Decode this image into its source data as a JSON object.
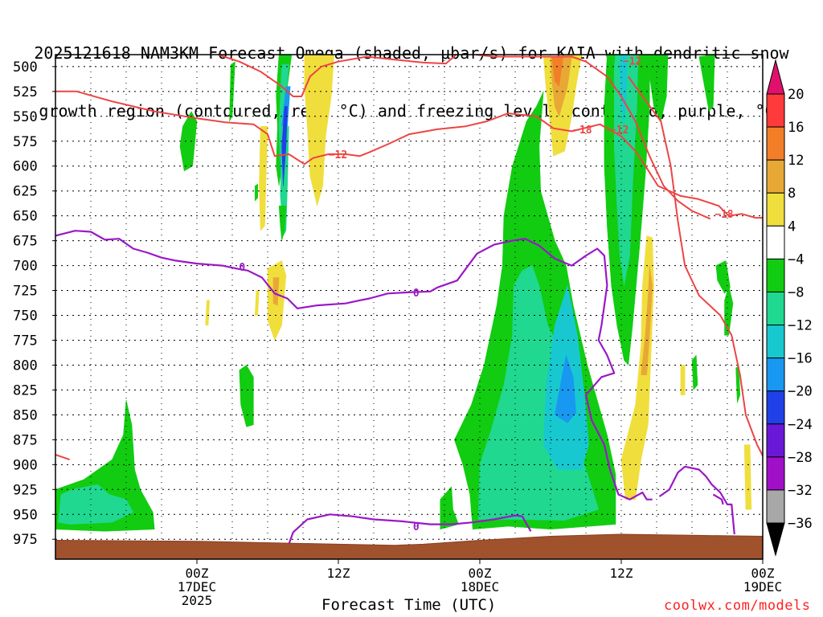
{
  "title": {
    "line1": "2025121618 NAM3KM Forecast Omega (shaded, μbar/s) for KAIA with dendritic snow",
    "line2": "growth region (contoured, red, °C) and freezing level (contoured, purple, °C)"
  },
  "chart_data": {
    "type": "heatmap",
    "xlabel": "Forecast Time (UTC)",
    "credit": "coolwx.com/models",
    "y_axis": {
      "label": "",
      "ticks": [
        "500",
        "525",
        "550",
        "575",
        "600",
        "625",
        "650",
        "675",
        "700",
        "725",
        "750",
        "775",
        "800",
        "825",
        "850",
        "875",
        "900",
        "925",
        "950",
        "975"
      ],
      "values": [
        500,
        525,
        550,
        575,
        600,
        625,
        650,
        675,
        700,
        725,
        750,
        775,
        800,
        825,
        850,
        875,
        900,
        925,
        950,
        975
      ],
      "ylim": [
        488,
        995
      ],
      "inverted": true
    },
    "x_axis": {
      "range_hours": [
        -10,
        40
      ],
      "ticks": [
        {
          "hour": 0,
          "lines": [
            "00Z",
            "17DEC",
            "2025"
          ]
        },
        {
          "hour": 10,
          "lines": [
            "12Z"
          ]
        },
        {
          "hour": 20,
          "lines": [
            "00Z",
            "18DEC"
          ]
        },
        {
          "hour": 30,
          "lines": [
            "12Z"
          ]
        },
        {
          "hour": 40,
          "lines": [
            "00Z",
            "19DEC"
          ]
        }
      ]
    },
    "colorbar": {
      "labels": [
        "20",
        "16",
        "12",
        "8",
        "4",
        "−4",
        "−8",
        "−12",
        "−16",
        "−20",
        "−24",
        "−28",
        "−32",
        "−36"
      ],
      "bins": [
        {
          "lo": 16,
          "hi": 20,
          "color": "#ff3a3a"
        },
        {
          "lo": 12,
          "hi": 16,
          "color": "#f27f28"
        },
        {
          "lo": 8,
          "hi": 12,
          "color": "#e8a836"
        },
        {
          "lo": 4,
          "hi": 8,
          "color": "#f0de3c"
        },
        {
          "lo": -4,
          "hi": 4,
          "color": "#ffffff"
        },
        {
          "lo": -8,
          "hi": -4,
          "color": "#11cc11"
        },
        {
          "lo": -12,
          "hi": -8,
          "color": "#20d890"
        },
        {
          "lo": -16,
          "hi": -12,
          "color": "#18c8d0"
        },
        {
          "lo": -20,
          "hi": -16,
          "color": "#1898f0"
        },
        {
          "lo": -24,
          "hi": -20,
          "color": "#2040e8"
        },
        {
          "lo": -28,
          "hi": -24,
          "color": "#6a18d8"
        },
        {
          "lo": -32,
          "hi": -28,
          "color": "#a010c8"
        },
        {
          "lo": -36,
          "hi": -32,
          "color": "#a8a8a8"
        }
      ],
      "top_arrow_color": "#e0106c",
      "bottom_arrow_color": "#000000"
    },
    "contours": {
      "dendritic": {
        "color": "#ee4444",
        "labels": [
          "−12",
          "−12",
          "−18",
          "−18",
          "−12"
        ]
      },
      "freezing": {
        "color": "#9a18c8",
        "labels": [
          "0",
          "0",
          "0"
        ]
      }
    },
    "colors": {
      "terrain": "#a0522d",
      "frame": "#000000"
    }
  }
}
